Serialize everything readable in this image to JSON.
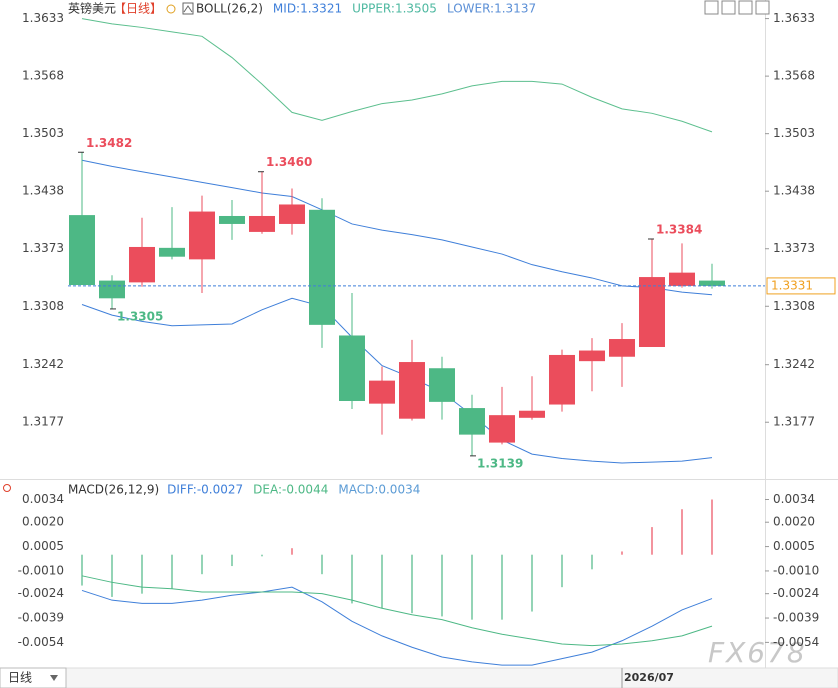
{
  "chart_data": [
    {
      "type": "candlestick",
      "title": "英镑美元",
      "period": "【日线】",
      "indicator": "BOLL(26,2)",
      "legend": [
        {
          "text": "MID:1.3321",
          "color": "#3f7fd9"
        },
        {
          "text": "UPPER:1.3505",
          "color": "#4db8a0"
        },
        {
          "text": "LOWER:1.3137",
          "color": "#5b8fd6"
        }
      ],
      "categories": [
        null,
        null,
        null,
        null,
        null,
        null,
        null,
        null,
        null,
        null,
        null,
        null,
        null,
        null,
        null,
        null,
        null,
        null,
        "2026/07",
        null,
        null,
        null
      ],
      "open": [
        1.3411,
        1.3337,
        1.3335,
        1.3374,
        1.3361,
        1.341,
        1.3392,
        1.3401,
        1.3417,
        1.3275,
        1.3198,
        1.3181,
        1.3238,
        1.3193,
        1.3154,
        1.3182,
        1.3197,
        1.3246,
        1.3251,
        1.3262,
        1.3331,
        1.3337
      ],
      "high": [
        1.3482,
        1.3343,
        1.3408,
        1.342,
        1.3433,
        1.3428,
        1.346,
        1.3441,
        1.343,
        1.3323,
        1.324,
        1.327,
        1.3251,
        1.3208,
        1.3217,
        1.3229,
        1.3259,
        1.3272,
        1.3289,
        1.3384,
        1.3379,
        1.3356
      ],
      "low": [
        1.3332,
        1.3305,
        1.333,
        1.3361,
        1.3323,
        1.3383,
        1.339,
        1.3389,
        1.3261,
        1.3192,
        1.3163,
        1.3179,
        1.318,
        1.3139,
        1.3152,
        1.318,
        1.3189,
        1.3212,
        1.3217,
        1.3262,
        1.3329,
        1.3328
      ],
      "close": [
        1.3332,
        1.3317,
        1.3375,
        1.3364,
        1.3415,
        1.3401,
        1.341,
        1.3423,
        1.3287,
        1.3201,
        1.3224,
        1.3245,
        1.32,
        1.3163,
        1.3185,
        1.319,
        1.3253,
        1.3258,
        1.3271,
        1.3341,
        1.3346,
        1.3331
      ],
      "high_labels": [
        "1.3482",
        null,
        null,
        null,
        null,
        null,
        "1.3460",
        null,
        null,
        null,
        null,
        null,
        null,
        null,
        null,
        null,
        null,
        null,
        null,
        "1.3384",
        null,
        null
      ],
      "low_labels": [
        null,
        "1.3305",
        null,
        null,
        null,
        null,
        null,
        null,
        null,
        null,
        null,
        null,
        null,
        "1.3139",
        null,
        null,
        null,
        null,
        null,
        null,
        null,
        null
      ],
      "up_color": "#eb4d5c",
      "down_color": "#4db885",
      "series": [
        {
          "color": "#5cbf8e",
          "values": [
            1.3633,
            1.3627,
            1.3623,
            1.3618,
            1.3613,
            1.3589,
            1.3559,
            1.3527,
            1.3518,
            1.3528,
            1.3537,
            1.3541,
            1.3548,
            1.3557,
            1.3562,
            1.3562,
            1.3559,
            1.3544,
            1.3531,
            1.3526,
            1.3517,
            1.3505
          ]
        },
        {
          "color": "#3f7fd9",
          "values": [
            1.3473,
            1.3466,
            1.346,
            1.3454,
            1.3448,
            1.3442,
            1.3436,
            1.3432,
            1.3417,
            1.3401,
            1.3394,
            1.3389,
            1.3383,
            1.3375,
            1.3367,
            1.3355,
            1.3347,
            1.334,
            1.3331,
            1.3329,
            1.3324,
            1.3321
          ]
        },
        {
          "color": "#3f7fd9",
          "values": [
            1.331,
            1.3298,
            1.3291,
            1.3286,
            1.3287,
            1.3288,
            1.3304,
            1.3317,
            1.3308,
            1.3273,
            1.3241,
            1.3227,
            1.3211,
            1.3185,
            1.3157,
            1.3141,
            1.3136,
            1.3133,
            1.3131,
            1.3132,
            1.3133,
            1.3137
          ]
        }
      ],
      "ylim": [
        1.3114,
        1.3654
      ],
      "yticks": [
        1.3633,
        1.3568,
        1.3503,
        1.3438,
        1.3373,
        1.3308,
        1.3242,
        1.3177
      ],
      "last_price": 1.3331,
      "last_price_color": "#f0a020"
    },
    {
      "type": "macd",
      "title": "MACD(26,12,9)",
      "legend": [
        {
          "text": "DIFF:-0.0027",
          "color": "#3f7fd9"
        },
        {
          "text": "DEA:-0.0044",
          "color": "#4db885"
        },
        {
          "text": "MACD:0.0034",
          "color": "#5b9bd5"
        }
      ],
      "values": [
        -0.0019,
        -0.0026,
        -0.0024,
        -0.0021,
        -0.0012,
        -0.0007,
        -0.0001,
        0.0004,
        -0.0012,
        -0.003,
        -0.0033,
        -0.0036,
        -0.0038,
        -0.004,
        -0.004,
        -0.0035,
        -0.002,
        -0.0009,
        0.0002,
        0.0017,
        0.0028,
        0.0034
      ],
      "up_color": "#eb4d5c",
      "down_color": "#4db885",
      "series": [
        {
          "color": "#3f7fd9",
          "values": [
            -0.0022,
            -0.0028,
            -0.003,
            -0.003,
            -0.0028,
            -0.0025,
            -0.0023,
            -0.002,
            -0.0029,
            -0.0041,
            -0.005,
            -0.0057,
            -0.0063,
            -0.0066,
            -0.0068,
            -0.0068,
            -0.0064,
            -0.006,
            -0.0053,
            -0.0044,
            -0.0034,
            -0.0027
          ]
        },
        {
          "color": "#4db885",
          "values": [
            -0.0013,
            -0.0017,
            -0.002,
            -0.0021,
            -0.0023,
            -0.0023,
            -0.0023,
            -0.0023,
            -0.0024,
            -0.0028,
            -0.0033,
            -0.0037,
            -0.004,
            -0.0045,
            -0.0049,
            -0.0052,
            -0.0055,
            -0.0056,
            -0.0055,
            -0.0053,
            -0.005,
            -0.0044
          ]
        }
      ],
      "ylim": [
        -0.0071,
        0.0046
      ],
      "yticks": [
        0.0034,
        {
          "value": 0.002,
          "label": "0.0020"
        },
        0.0005,
        {
          "value": -0.001,
          "label": "-0.0010"
        },
        -0.0024,
        -0.0039,
        -0.0054
      ]
    }
  ],
  "footer": {
    "period": "日线",
    "watermark": "FX678"
  }
}
